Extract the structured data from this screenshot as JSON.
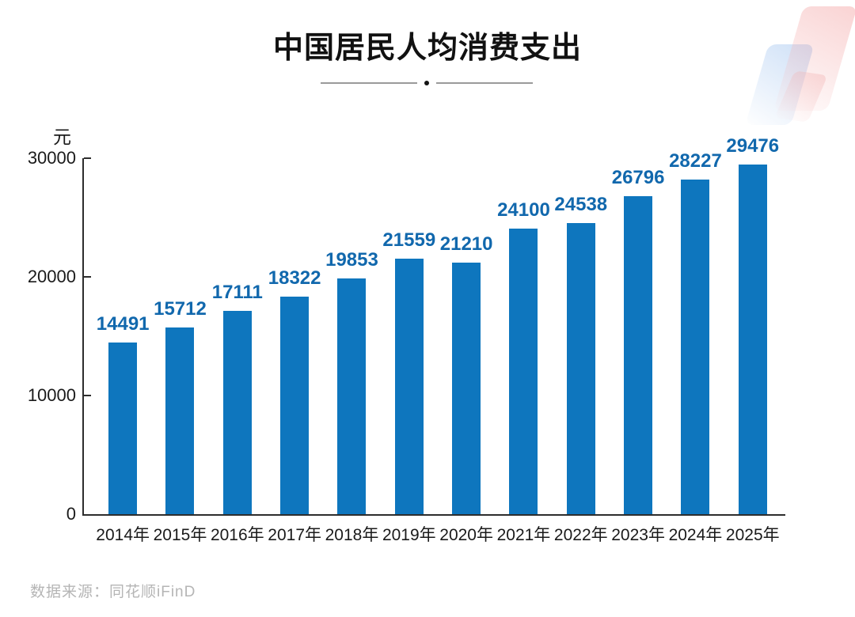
{
  "page": {
    "title": "中国居民人均消费支出",
    "unit_label": "元",
    "source": "数据来源：同花顺iFinD"
  },
  "chart_data": {
    "type": "bar",
    "title": "中国居民人均消费支出",
    "categories": [
      "2014年",
      "2015年",
      "2016年",
      "2017年",
      "2018年",
      "2019年",
      "2020年",
      "2021年",
      "2022年",
      "2023年",
      "2024年",
      "2025年"
    ],
    "values": [
      14491,
      15712,
      17111,
      18322,
      19853,
      21559,
      21210,
      24100,
      24538,
      26796,
      28227,
      29476
    ],
    "xlabel": "",
    "ylabel": "元",
    "ylim": [
      0,
      30000
    ],
    "yticks": [
      0,
      10000,
      20000,
      30000
    ],
    "grid": false,
    "legend_position": "none",
    "bar_color": "#0e76be",
    "value_label_color": "#1168ad",
    "source": "数据来源：同花顺iFinD"
  }
}
